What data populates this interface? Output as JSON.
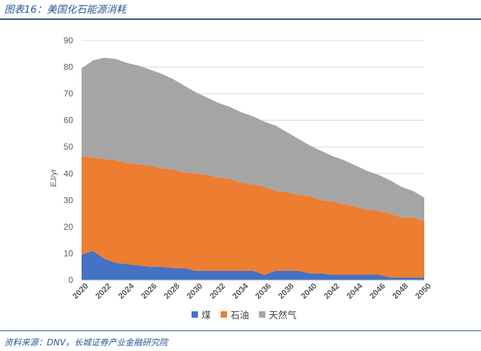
{
  "header": {
    "title": "图表16：美国化石能源消耗"
  },
  "footer": {
    "source": "资料来源：DNV，长城证券产业金融研究院"
  },
  "colors": {
    "coal": "#4472c4",
    "oil": "#ed7d31",
    "gas": "#a5a5a5",
    "brand": "#2b5797"
  },
  "chart_data": {
    "type": "area",
    "stacked": true,
    "title": "",
    "xlabel": "",
    "ylabel": "EJ/yr",
    "ylim": [
      0,
      90
    ],
    "yticks": [
      0,
      10,
      20,
      30,
      40,
      50,
      60,
      70,
      80,
      90
    ],
    "xlim": [
      2020,
      2050
    ],
    "xticks": [
      2020,
      2022,
      2024,
      2026,
      2028,
      2030,
      2032,
      2034,
      2036,
      2038,
      2040,
      2042,
      2044,
      2046,
      2048,
      2050
    ],
    "grid": true,
    "legend_position": "bottom",
    "x": [
      2020,
      2021,
      2022,
      2023,
      2024,
      2025,
      2026,
      2027,
      2028,
      2029,
      2030,
      2031,
      2032,
      2033,
      2034,
      2035,
      2036,
      2037,
      2038,
      2039,
      2040,
      2041,
      2042,
      2043,
      2044,
      2045,
      2046,
      2047,
      2048,
      2049,
      2050
    ],
    "series": [
      {
        "name": "煤",
        "color": "#4472c4",
        "values": [
          9.5,
          11,
          8,
          6.5,
          6,
          5.5,
          5,
          5,
          4.5,
          4.5,
          3.5,
          3.5,
          3.5,
          3.5,
          3.5,
          3.5,
          2,
          3.5,
          3.5,
          3.5,
          2.5,
          2.5,
          2,
          2,
          2,
          2,
          2,
          1,
          1,
          1,
          1
        ]
      },
      {
        "name": "石油",
        "color": "#ed7d31",
        "values": [
          37,
          35,
          37.5,
          38.5,
          38,
          38,
          38,
          37,
          37,
          36,
          36.5,
          36,
          35,
          34.5,
          33,
          32.5,
          33,
          30,
          29.5,
          28.5,
          29,
          27.5,
          27.5,
          26.5,
          25.5,
          24.5,
          24,
          24,
          22.5,
          22.5,
          21
        ]
      },
      {
        "name": "天然气",
        "color": "#a5a5a5",
        "values": [
          33,
          36.5,
          38,
          38,
          37.5,
          37,
          36,
          35.5,
          34,
          32.5,
          30.5,
          29,
          28,
          27,
          26.5,
          25.5,
          24.5,
          24.5,
          22.5,
          21,
          19,
          18.5,
          17,
          16.5,
          15.5,
          14.5,
          13.5,
          12.5,
          11.5,
          10,
          9
        ]
      }
    ]
  }
}
